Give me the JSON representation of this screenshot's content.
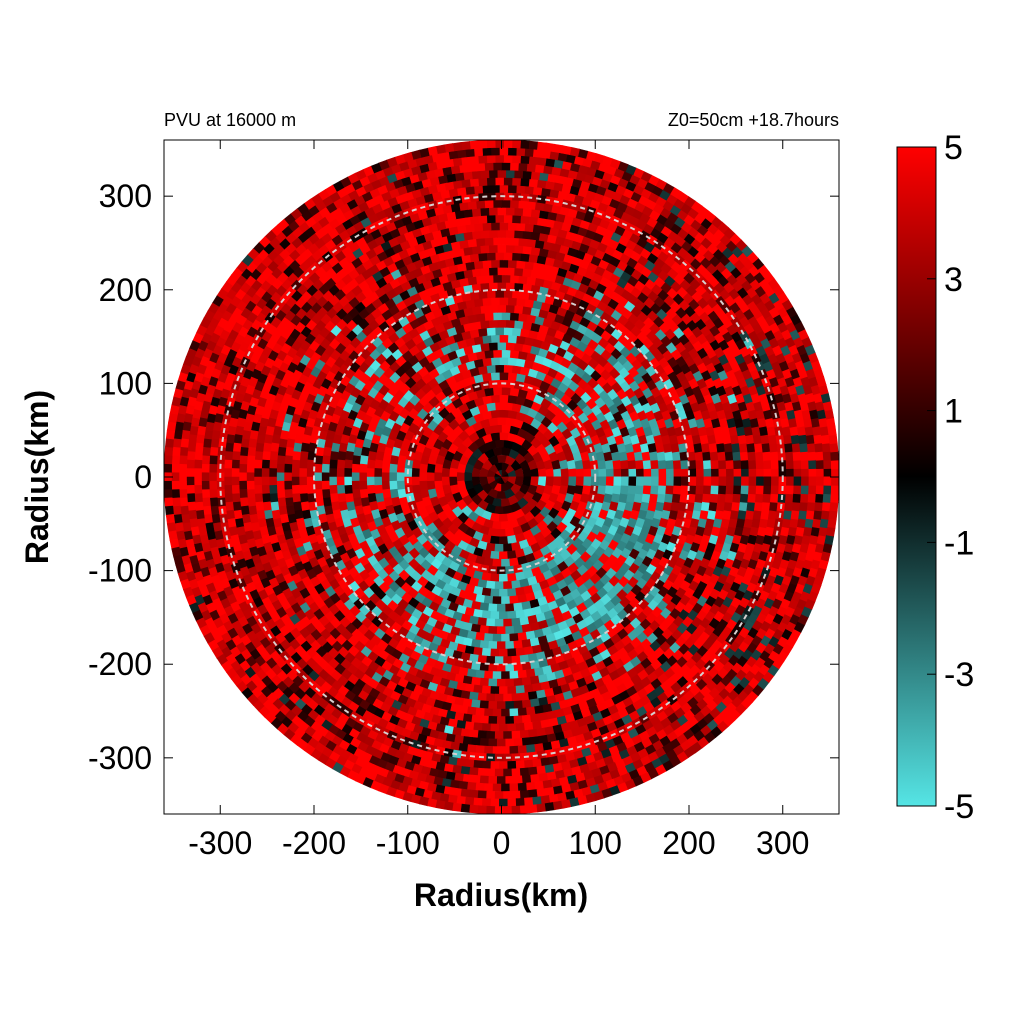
{
  "header": {
    "left_title": "PVU at 16000 m",
    "right_title": "Z0=50cm  +18.7hours"
  },
  "colors": {
    "positive": "#ff0000",
    "zero": "#000000",
    "negative": "#55e5e5",
    "guide_ring": "#d8d0d0",
    "frame": "#000000"
  },
  "chart_data": {
    "type": "heatmap",
    "projection": "polar field on cartesian axes",
    "variable": "PVU",
    "level": "16000 m",
    "xlabel": "Radius(km)",
    "ylabel": "Radius(km)",
    "xlim": [
      -360,
      360
    ],
    "ylim": [
      -360,
      360
    ],
    "domain_radius_km": 360,
    "x_ticks": [
      -300,
      -200,
      -100,
      0,
      100,
      200,
      300
    ],
    "y_ticks": [
      300,
      200,
      100,
      0,
      -100,
      -200,
      -300
    ],
    "guide_rings_km": [
      100,
      200,
      300
    ],
    "colorbar": {
      "min": -5,
      "max": 5,
      "ticks": [
        5,
        3,
        1,
        -1,
        -3,
        -5
      ]
    },
    "field_summary": "Mostly positive PVU (red) with scattered negative patches (cyan), concentrated in an annulus between about 50 and 200 km radius, largest on the east and south-east sides."
  }
}
